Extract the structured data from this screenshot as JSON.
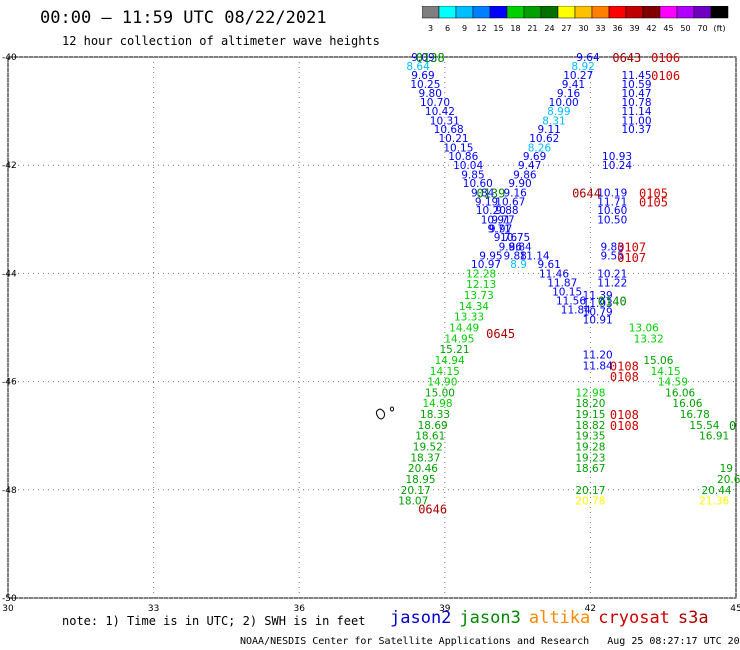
{
  "header": {
    "title": "00:00 — 11:59 UTC 08/22/2021",
    "subtitle": "12 hour collection of altimeter wave heights"
  },
  "colorbar": {
    "colors": [
      "#7f7f7f",
      "#00ffff",
      "#00bfff",
      "#0080ff",
      "#0000ff",
      "#00d000",
      "#00a000",
      "#007000",
      "#ffff00",
      "#ffc000",
      "#ff8000",
      "#ff0000",
      "#c00000",
      "#800000",
      "#ff00ff",
      "#b000ff",
      "#7000c0",
      "#000000"
    ],
    "labels": [
      "3",
      "6",
      "9",
      "12",
      "15",
      "18",
      "21",
      "24",
      "27",
      "30",
      "33",
      "36",
      "39",
      "42",
      "45",
      "50",
      "70",
      "(ft)"
    ]
  },
  "chart_data": {
    "type": "scatter",
    "xlim": [
      30,
      45
    ],
    "ylim": [
      -50,
      -40
    ],
    "x_ticks": [
      "30",
      "33",
      "36",
      "39",
      "42",
      "45"
    ],
    "y_ticks": [
      "-40",
      "-42",
      "-44",
      "-46",
      "-48",
      "-50"
    ],
    "grid": true,
    "series_colors": {
      "jason2": "#0000cc",
      "jason3": "#008800",
      "altika": "#ff8800",
      "cryosat": "#cc0000",
      "s3a": "#aa0000"
    },
    "swh_colors": [
      "#00bfff",
      "#0000ff",
      "#00d000",
      "#00a000",
      "#ffff00"
    ],
    "points": [
      {
        "x": 38.55,
        "y": -40.0,
        "v": "9.09",
        "c": "#0000ff"
      },
      {
        "x": 38.45,
        "y": -40.17,
        "v": "8.64",
        "c": "#00bfff"
      },
      {
        "x": 38.55,
        "y": -40.33,
        "v": "9.69",
        "c": "#0000ff"
      },
      {
        "x": 38.6,
        "y": -40.5,
        "v": "10.25",
        "c": "#0000ff"
      },
      {
        "x": 38.7,
        "y": -40.67,
        "v": "9.80",
        "c": "#0000ff"
      },
      {
        "x": 38.8,
        "y": -40.83,
        "v": "10.70",
        "c": "#0000ff"
      },
      {
        "x": 38.9,
        "y": -41.0,
        "v": "10.42",
        "c": "#0000ff"
      },
      {
        "x": 39.0,
        "y": -41.17,
        "v": "10.31",
        "c": "#0000ff"
      },
      {
        "x": 39.08,
        "y": -41.33,
        "v": "10.68",
        "c": "#0000ff"
      },
      {
        "x": 39.18,
        "y": -41.5,
        "v": "10.21",
        "c": "#0000ff"
      },
      {
        "x": 39.28,
        "y": -41.67,
        "v": "10.15",
        "c": "#0000ff"
      },
      {
        "x": 39.38,
        "y": -41.83,
        "v": "10.86",
        "c": "#0000ff"
      },
      {
        "x": 39.48,
        "y": -42.0,
        "v": "10.04",
        "c": "#0000ff"
      },
      {
        "x": 39.58,
        "y": -42.17,
        "v": "9.85",
        "c": "#0000ff"
      },
      {
        "x": 39.68,
        "y": -42.33,
        "v": "10.60",
        "c": "#0000ff"
      },
      {
        "x": 39.78,
        "y": -42.5,
        "v": "9.84",
        "c": "#0000ff"
      },
      {
        "x": 39.86,
        "y": -42.67,
        "v": "9.19",
        "c": "#0000ff"
      },
      {
        "x": 39.95,
        "y": -42.83,
        "v": "10.20",
        "c": "#0000ff"
      },
      {
        "x": 40.05,
        "y": -43.0,
        "v": "10.91",
        "c": "#0000ff"
      },
      {
        "x": 40.15,
        "y": -43.17,
        "v": "9.97",
        "c": "#0000ff"
      },
      {
        "x": 40.25,
        "y": -43.33,
        "v": "9.76",
        "c": "#0000ff"
      },
      {
        "x": 40.35,
        "y": -43.5,
        "v": "9.86",
        "c": "#0000ff"
      },
      {
        "x": 40.45,
        "y": -43.67,
        "v": "9.88",
        "c": "#0000ff"
      },
      {
        "x": 40.52,
        "y": -43.83,
        "v": "8.9",
        "c": "#00bfff"
      },
      {
        "x": 41.95,
        "y": -40.0,
        "v": "9.64",
        "c": "#0000ff"
      },
      {
        "x": 41.85,
        "y": -40.17,
        "v": "8.92",
        "c": "#00bfff"
      },
      {
        "x": 41.75,
        "y": -40.33,
        "v": "10.27",
        "c": "#0000ff"
      },
      {
        "x": 41.65,
        "y": -40.5,
        "v": "9.41",
        "c": "#0000ff"
      },
      {
        "x": 41.55,
        "y": -40.67,
        "v": "9.16",
        "c": "#0000ff"
      },
      {
        "x": 41.45,
        "y": -40.83,
        "v": "10.00",
        "c": "#0000ff"
      },
      {
        "x": 41.35,
        "y": -41.0,
        "v": "8.99",
        "c": "#00bfff"
      },
      {
        "x": 41.25,
        "y": -41.17,
        "v": "8.31",
        "c": "#00bfff"
      },
      {
        "x": 41.15,
        "y": -41.33,
        "v": "9.11",
        "c": "#0000ff"
      },
      {
        "x": 41.05,
        "y": -41.5,
        "v": "10.62",
        "c": "#0000ff"
      },
      {
        "x": 40.95,
        "y": -41.67,
        "v": "8.26",
        "c": "#00bfff"
      },
      {
        "x": 40.85,
        "y": -41.83,
        "v": "9.69",
        "c": "#0000ff"
      },
      {
        "x": 40.75,
        "y": -42.0,
        "v": "9.47",
        "c": "#0000ff"
      },
      {
        "x": 40.65,
        "y": -42.17,
        "v": "9.86",
        "c": "#0000ff"
      },
      {
        "x": 40.55,
        "y": -42.33,
        "v": "9.90",
        "c": "#0000ff"
      },
      {
        "x": 40.45,
        "y": -42.5,
        "v": "9.16",
        "c": "#0000ff"
      },
      {
        "x": 40.35,
        "y": -42.67,
        "v": "10.67",
        "c": "#0000ff"
      },
      {
        "x": 40.28,
        "y": -42.83,
        "v": "9.88",
        "c": "#0000ff"
      },
      {
        "x": 40.2,
        "y": -43.0,
        "v": "9.77",
        "c": "#0000ff"
      },
      {
        "x": 40.12,
        "y": -43.17,
        "v": "9.71",
        "c": "#0000ff"
      },
      {
        "x": 40.45,
        "y": -43.33,
        "v": "10.75",
        "c": "#0000ff"
      },
      {
        "x": 40.55,
        "y": -43.5,
        "v": "9.84",
        "c": "#0000ff"
      },
      {
        "x": 39.95,
        "y": -43.67,
        "v": "9.95",
        "c": "#0000ff"
      },
      {
        "x": 40.85,
        "y": -43.67,
        "v": "11.14",
        "c": "#0000ff"
      },
      {
        "x": 39.85,
        "y": -43.83,
        "v": "10.97",
        "c": "#0000ff"
      },
      {
        "x": 41.15,
        "y": -43.83,
        "v": "9.61",
        "c": "#0000ff"
      },
      {
        "x": 39.75,
        "y": -44.0,
        "v": "12.28",
        "c": "#00d000"
      },
      {
        "x": 41.25,
        "y": -44.0,
        "v": "11.46",
        "c": "#0000ff"
      },
      {
        "x": 39.75,
        "y": -44.2,
        "v": "12.13",
        "c": "#00d000"
      },
      {
        "x": 41.42,
        "y": -44.17,
        "v": "11.87",
        "c": "#0000ff"
      },
      {
        "x": 39.7,
        "y": -44.4,
        "v": "13.73",
        "c": "#00d000"
      },
      {
        "x": 41.52,
        "y": -44.33,
        "v": "10.15",
        "c": "#0000ff"
      },
      {
        "x": 39.6,
        "y": -44.6,
        "v": "14.34",
        "c": "#00d000"
      },
      {
        "x": 41.6,
        "y": -44.5,
        "v": "11.56",
        "c": "#0000ff"
      },
      {
        "x": 39.5,
        "y": -44.8,
        "v": "13.33",
        "c": "#00d000"
      },
      {
        "x": 41.7,
        "y": -44.67,
        "v": "11.84",
        "c": "#0000ff"
      },
      {
        "x": 39.4,
        "y": -45.0,
        "v": "14.49",
        "c": "#00d000"
      },
      {
        "x": 39.3,
        "y": -45.2,
        "v": "14.95",
        "c": "#00d000"
      },
      {
        "x": 39.2,
        "y": -45.4,
        "v": "15.21",
        "c": "#00a000"
      },
      {
        "x": 39.1,
        "y": -45.6,
        "v": "14.94",
        "c": "#00d000"
      },
      {
        "x": 39.0,
        "y": -45.8,
        "v": "14.15",
        "c": "#00d000"
      },
      {
        "x": 38.95,
        "y": -46.0,
        "v": "14.90",
        "c": "#00d000"
      },
      {
        "x": 38.9,
        "y": -46.2,
        "v": "15.00",
        "c": "#00a000"
      },
      {
        "x": 38.85,
        "y": -46.4,
        "v": "14.98",
        "c": "#00d000"
      },
      {
        "x": 38.8,
        "y": -46.6,
        "v": "18.33",
        "c": "#00a000"
      },
      {
        "x": 38.75,
        "y": -46.8,
        "v": "18.69",
        "c": "#00a000"
      },
      {
        "x": 38.7,
        "y": -47.0,
        "v": "18.61",
        "c": "#00a000"
      },
      {
        "x": 38.65,
        "y": -47.2,
        "v": "19.52",
        "c": "#00a000"
      },
      {
        "x": 38.6,
        "y": -47.4,
        "v": "18.37",
        "c": "#00a000"
      },
      {
        "x": 38.55,
        "y": -47.6,
        "v": "20.46",
        "c": "#00a000"
      },
      {
        "x": 38.5,
        "y": -47.8,
        "v": "18.95",
        "c": "#00a000"
      },
      {
        "x": 38.4,
        "y": -48.0,
        "v": "20.17",
        "c": "#00a000"
      },
      {
        "x": 38.35,
        "y": -48.2,
        "v": "18.07",
        "c": "#00a000"
      },
      {
        "x": 42.0,
        "y": -46.2,
        "v": "12.98",
        "c": "#00d000"
      },
      {
        "x": 42.0,
        "y": -46.4,
        "v": "18.20",
        "c": "#00a000"
      },
      {
        "x": 42.0,
        "y": -46.6,
        "v": "19.15",
        "c": "#00a000"
      },
      {
        "x": 42.0,
        "y": -46.8,
        "v": "18.82",
        "c": "#00a000"
      },
      {
        "x": 42.0,
        "y": -47.0,
        "v": "19.35",
        "c": "#00a000"
      },
      {
        "x": 42.0,
        "y": -47.2,
        "v": "19.28",
        "c": "#00a000"
      },
      {
        "x": 42.0,
        "y": -47.4,
        "v": "19.23",
        "c": "#00a000"
      },
      {
        "x": 42.0,
        "y": -47.6,
        "v": "18.67",
        "c": "#00a000"
      },
      {
        "x": 42.0,
        "y": -48.0,
        "v": "20.17",
        "c": "#00a000"
      },
      {
        "x": 42.0,
        "y": -48.2,
        "v": "20.78",
        "c": "#ffff00"
      },
      {
        "x": 43.1,
        "y": -45.0,
        "v": "13.06",
        "c": "#00d000"
      },
      {
        "x": 43.2,
        "y": -45.2,
        "v": "13.32",
        "c": "#00d000"
      },
      {
        "x": 43.4,
        "y": -45.6,
        "v": "15.06",
        "c": "#00a000"
      },
      {
        "x": 43.55,
        "y": -45.8,
        "v": "14.15",
        "c": "#00d000"
      },
      {
        "x": 43.7,
        "y": -46.0,
        "v": "14.59",
        "c": "#00d000"
      },
      {
        "x": 43.85,
        "y": -46.2,
        "v": "16.06",
        "c": "#00a000"
      },
      {
        "x": 44.0,
        "y": -46.4,
        "v": "16.06",
        "c": "#00a000"
      },
      {
        "x": 44.15,
        "y": -46.6,
        "v": "16.78",
        "c": "#00a000"
      },
      {
        "x": 44.35,
        "y": -46.8,
        "v": "15.54",
        "c": "#00a000"
      },
      {
        "x": 44.55,
        "y": -47.0,
        "v": "16.91",
        "c": "#00a000"
      },
      {
        "x": 44.8,
        "y": -47.6,
        "v": "19",
        "c": "#00a000"
      },
      {
        "x": 44.85,
        "y": -47.8,
        "v": "20.6",
        "c": "#00a000"
      },
      {
        "x": 44.6,
        "y": -48.0,
        "v": "20.44",
        "c": "#00a000"
      },
      {
        "x": 44.55,
        "y": -48.2,
        "v": "21.36",
        "c": "#ffff00"
      },
      {
        "x": 42.95,
        "y": -40.33,
        "v": "11.45",
        "c": "#0000ff"
      },
      {
        "x": 42.95,
        "y": -40.5,
        "v": "10.59",
        "c": "#0000ff"
      },
      {
        "x": 42.95,
        "y": -40.67,
        "v": "10.47",
        "c": "#0000ff"
      },
      {
        "x": 42.95,
        "y": -40.83,
        "v": "10.78",
        "c": "#0000ff"
      },
      {
        "x": 42.95,
        "y": -41.0,
        "v": "11.14",
        "c": "#0000ff"
      },
      {
        "x": 42.95,
        "y": -41.17,
        "v": "11.00",
        "c": "#0000ff"
      },
      {
        "x": 42.95,
        "y": -41.33,
        "v": "10.37",
        "c": "#0000ff"
      },
      {
        "x": 42.55,
        "y": -41.83,
        "v": "10.93",
        "c": "#0000ff"
      },
      {
        "x": 42.55,
        "y": -42.0,
        "v": "10.24",
        "c": "#0000ff"
      },
      {
        "x": 42.45,
        "y": -42.5,
        "v": "10.19",
        "c": "#0000ff"
      },
      {
        "x": 42.45,
        "y": -42.67,
        "v": "11.71",
        "c": "#0000ff"
      },
      {
        "x": 42.45,
        "y": -42.83,
        "v": "10.60",
        "c": "#0000ff"
      },
      {
        "x": 42.45,
        "y": -43.0,
        "v": "10.50",
        "c": "#0000ff"
      },
      {
        "x": 42.45,
        "y": -43.5,
        "v": "9.83",
        "c": "#0000ff"
      },
      {
        "x": 42.45,
        "y": -43.67,
        "v": "9.55",
        "c": "#0000ff"
      },
      {
        "x": 42.45,
        "y": -44.0,
        "v": "10.21",
        "c": "#0000ff"
      },
      {
        "x": 42.45,
        "y": -44.17,
        "v": "11.22",
        "c": "#0000ff"
      },
      {
        "x": 42.15,
        "y": -44.4,
        "v": "11.39",
        "c": "#0000ff"
      },
      {
        "x": 42.15,
        "y": -44.55,
        "v": "11.93",
        "c": "#0000ff"
      },
      {
        "x": 42.15,
        "y": -44.7,
        "v": "10.79",
        "c": "#0000ff"
      },
      {
        "x": 42.15,
        "y": -44.85,
        "v": "10.91",
        "c": "#0000ff"
      },
      {
        "x": 42.15,
        "y": -45.5,
        "v": "11.20",
        "c": "#0000ff"
      },
      {
        "x": 42.15,
        "y": -45.7,
        "v": "11.84",
        "c": "#0000ff"
      }
    ],
    "passes": [
      {
        "x": 38.7,
        "y": -40.0,
        "label": "0138",
        "sat": "jason3"
      },
      {
        "x": 39.95,
        "y": -42.5,
        "label": "0139",
        "sat": "jason3"
      },
      {
        "x": 42.45,
        "y": -44.5,
        "label": "0140",
        "sat": "jason3"
      },
      {
        "x": 44.93,
        "y": -46.8,
        "label": "0",
        "sat": "jason3"
      },
      {
        "x": 42.75,
        "y": -40.0,
        "label": "0643",
        "sat": "s3a"
      },
      {
        "x": 41.92,
        "y": -42.5,
        "label": "0644",
        "sat": "s3a"
      },
      {
        "x": 40.15,
        "y": -45.1,
        "label": "0645",
        "sat": "s3a"
      },
      {
        "x": 38.75,
        "y": -48.35,
        "label": "0646",
        "sat": "s3a"
      },
      {
        "x": 43.55,
        "y": -40.0,
        "label": "0106",
        "sat": "cryosat"
      },
      {
        "x": 43.55,
        "y": -40.33,
        "label": "0106",
        "sat": "cryosat"
      },
      {
        "x": 43.3,
        "y": -42.5,
        "label": "0105",
        "sat": "cryosat"
      },
      {
        "x": 43.3,
        "y": -42.67,
        "label": "0105",
        "sat": "cryosat"
      },
      {
        "x": 42.85,
        "y": -43.5,
        "label": "0107",
        "sat": "cryosat"
      },
      {
        "x": 42.85,
        "y": -43.7,
        "label": "0107",
        "sat": "cryosat"
      },
      {
        "x": 42.7,
        "y": -45.7,
        "label": "0108",
        "sat": "cryosat"
      },
      {
        "x": 42.7,
        "y": -45.9,
        "label": "0108",
        "sat": "cryosat"
      },
      {
        "x": 42.7,
        "y": -46.6,
        "label": "0108",
        "sat": "cryosat"
      },
      {
        "x": 42.7,
        "y": -46.8,
        "label": "0108",
        "sat": "cryosat"
      }
    ]
  },
  "footer": {
    "note": "note: 1) Time is in UTC; 2) SWH is in feet",
    "credit": "NOAA/NESDIS Center for Satellite Applications and Research   Aug 25 08:27:17 UTC 2021"
  },
  "satellites": [
    {
      "name": "jason2",
      "color": "#0000cc"
    },
    {
      "name": "jason3",
      "color": "#008800"
    },
    {
      "name": "altika",
      "color": "#ff8800"
    },
    {
      "name": "cryosat",
      "color": "#cc0000"
    },
    {
      "name": "s3a",
      "color": "#aa0000"
    }
  ]
}
